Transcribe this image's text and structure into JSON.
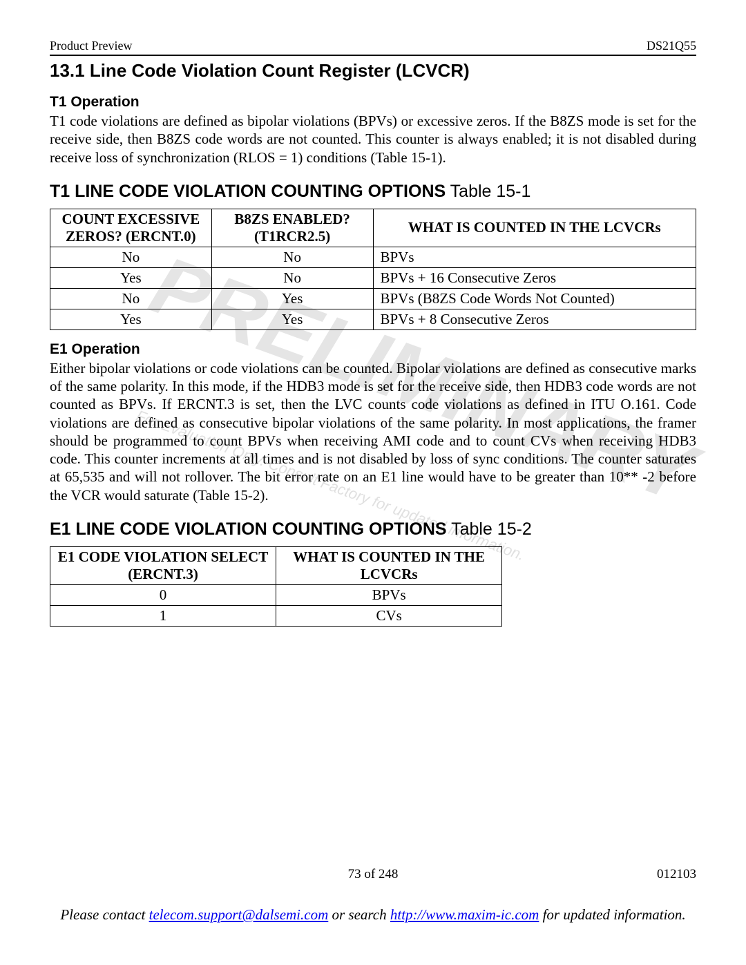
{
  "header": {
    "left": "Product Preview",
    "right": "DS21Q55"
  },
  "section_title": "13.1  Line Code Violation Count Register (LCVCR)",
  "t1": {
    "heading": "T1 Operation",
    "body": "T1 code violations are defined as bipolar violations (BPVs) or excessive zeros. If the B8ZS mode is set for the receive side, then B8ZS code words are not counted. This counter is always enabled; it is not disabled during receive loss of synchronization (RLOS = 1) conditions (Table 15-1).",
    "caption_bold": "T1 LINE CODE VIOLATION COUNTING OPTIONS",
    "caption_ref": " Table 15-1",
    "table": {
      "columns": [
        "COUNT EXCESSIVE ZEROS? (ERCNT.0)",
        "B8ZS ENABLED? (T1RCR2.5)",
        "WHAT IS COUNTED IN THE LCVCRs"
      ],
      "col_widths": [
        "25%",
        "25%",
        "50%"
      ],
      "rows": [
        [
          "No",
          "No",
          "BPVs"
        ],
        [
          "Yes",
          "No",
          "BPVs + 16 Consecutive Zeros"
        ],
        [
          "No",
          "Yes",
          "BPVs (B8ZS Code Words Not Counted)"
        ],
        [
          "Yes",
          "Yes",
          "BPVs + 8 Consecutive Zeros"
        ]
      ]
    }
  },
  "e1": {
    "heading": "E1 Operation",
    "body": "Either bipolar violations or code violations can be counted. Bipolar violations are defined as consecutive marks of the same polarity. In this mode, if the HDB3 mode is set for the receive side, then HDB3 code words are not counted as BPVs. If ERCNT.3 is set, then the LVC counts code violations as defined in ITU O.161. Code violations are defined as consecutive bipolar violations of the same polarity. In most applications, the framer should be programmed to count BPVs when receiving AMI code and to count CVs when receiving HDB3 code. This counter increments at all times and is not disabled by loss of sync conditions. The counter saturates at 65,535 and will not rollover. The bit error rate on an E1 line would have to be greater than 10** -2 before the VCR would saturate (Table 15-2).",
    "caption_bold": "E1 LINE CODE VIOLATION COUNTING OPTIONS",
    "caption_ref": " Table 15-2",
    "table": {
      "columns": [
        "E1 CODE VIOLATION SELECT (ERCNT.3)",
        "WHAT IS COUNTED IN THE LCVCRs"
      ],
      "col_widths": [
        "50%",
        "50%"
      ],
      "rows": [
        [
          "0",
          "BPVs"
        ],
        [
          "1",
          "CVs"
        ]
      ]
    }
  },
  "watermark": {
    "main": "PRELIMINARY",
    "sub": "For Evaluation Only. Consult Factory for updated information."
  },
  "footer": {
    "page": "73 of 248",
    "code": "012103",
    "note_prefix": "Please contact ",
    "email": "telecom.support@dalsemi.com",
    "note_mid": " or search ",
    "url": "http://www.maxim-ic.com",
    "note_suffix": " for updated information."
  }
}
